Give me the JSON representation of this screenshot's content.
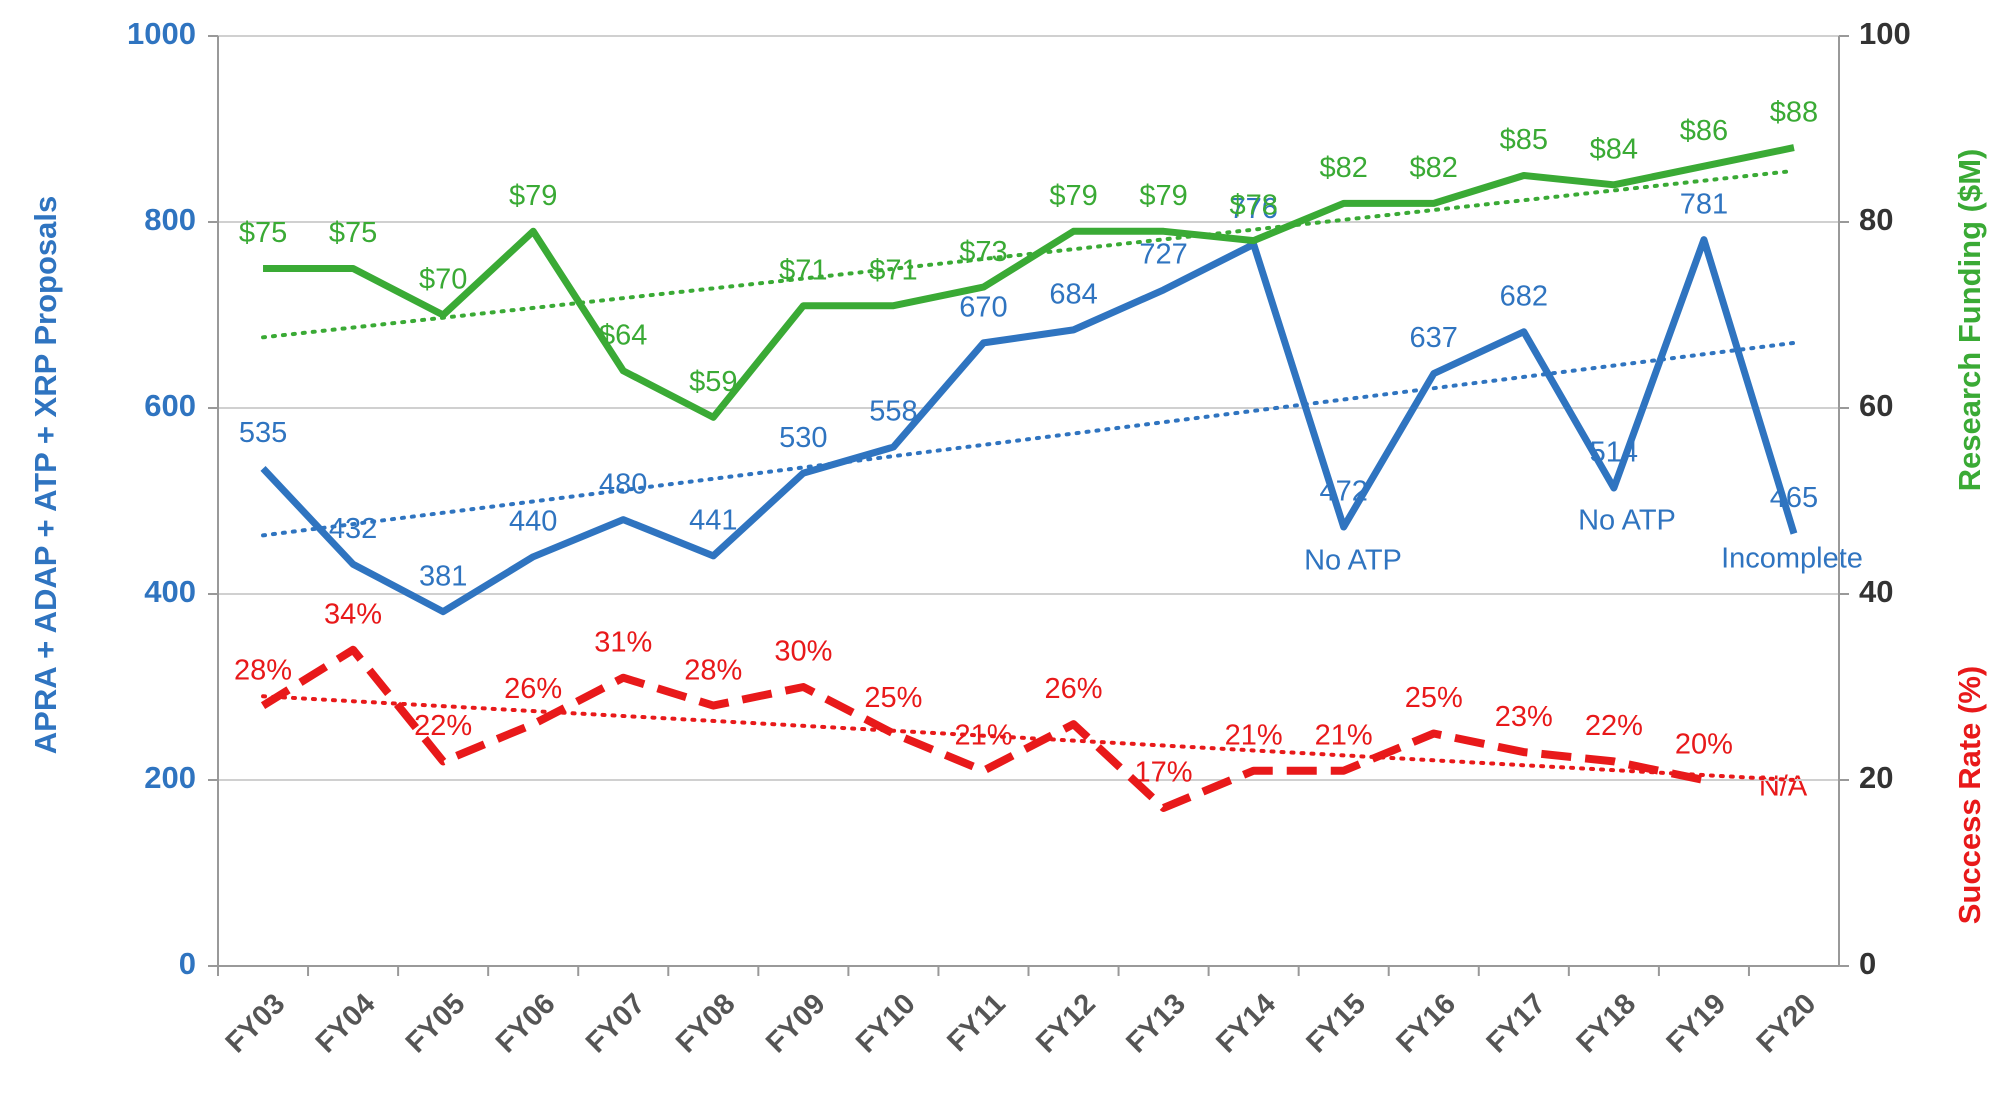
{
  "chart_data": {
    "type": "line",
    "y_label": "APRA + ADAP + ATP + XRP Proposals",
    "y2_label": "Research Funding ($M)",
    "y2_label_secondary": "Success Rate (%)",
    "categories": [
      "FY03",
      "FY04",
      "FY05",
      "FY06",
      "FY07",
      "FY08",
      "FY09",
      "FY10",
      "FY11",
      "FY12",
      "FY13",
      "FY14",
      "FY15",
      "FY16",
      "FY17",
      "FY18",
      "FY19",
      "FY20"
    ],
    "ylim": [
      0,
      1000
    ],
    "yticks": [
      0,
      200,
      400,
      600,
      800,
      1000
    ],
    "y2lim": [
      0,
      100
    ],
    "y2ticks": [
      0,
      20,
      40,
      60,
      80,
      100
    ],
    "grid": true,
    "series": [
      {
        "name": "Proposals",
        "color": "#2f74c0",
        "axis": "y",
        "dash": "solid",
        "values": [
          535,
          432,
          381,
          440,
          480,
          441,
          530,
          558,
          670,
          684,
          727,
          776,
          472,
          637,
          682,
          514,
          781,
          465
        ]
      },
      {
        "name": "Research Funding",
        "color": "#3aaa35",
        "axis": "y2",
        "dash": "solid",
        "values": [
          75,
          75,
          70,
          79,
          64,
          59,
          71,
          71,
          73,
          79,
          79,
          78,
          82,
          82,
          85,
          84,
          86,
          88
        ],
        "value_labels": [
          "$75",
          "$75",
          "$70",
          "$79",
          "$64",
          "$59",
          "$71",
          "$71",
          "$73",
          "$79",
          "$79",
          "$78",
          "$82",
          "$82",
          "$85",
          "$84",
          "$86",
          "$88"
        ]
      },
      {
        "name": "Success Rate",
        "color": "#e8191a",
        "axis": "y2",
        "dash": "dashed",
        "values": [
          28,
          34,
          22,
          26,
          31,
          28,
          30,
          25,
          21,
          26,
          17,
          21,
          21,
          25,
          23,
          22,
          20,
          null
        ],
        "value_labels": [
          "28%",
          "34%",
          "22%",
          "26%",
          "31%",
          "28%",
          "30%",
          "25%",
          "21%",
          "26%",
          "17%",
          "21%",
          "21%",
          "25%",
          "23%",
          "22%",
          "20%",
          null
        ]
      }
    ],
    "trendlines": [
      {
        "color": "#2f74c0",
        "axis": "y",
        "values": [
          463,
          670
        ]
      },
      {
        "color": "#3aaa35",
        "axis": "y2",
        "values": [
          67.6,
          85.5
        ]
      },
      {
        "color": "#e8191a",
        "axis": "y2",
        "values": [
          29,
          20
        ]
      }
    ],
    "annotations": [
      "No ATP",
      "No ATP",
      "Incomplete",
      "N/A"
    ]
  }
}
